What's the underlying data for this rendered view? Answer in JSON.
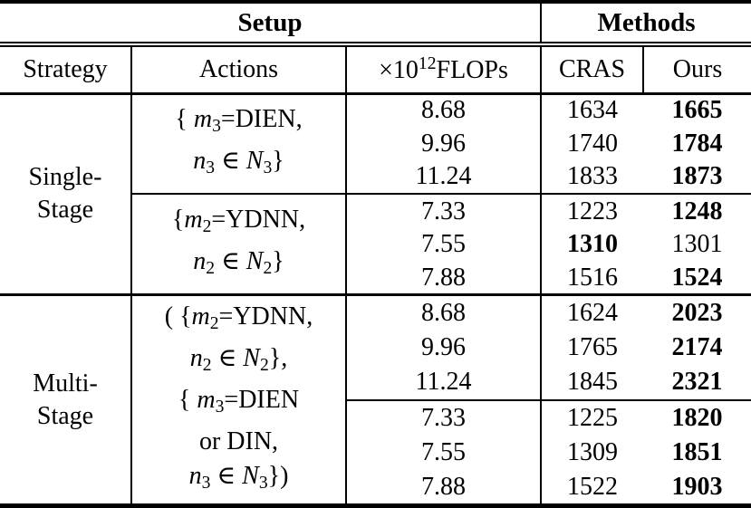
{
  "table": {
    "group_header": {
      "setup": "Setup",
      "methods": "Methods"
    },
    "columns": {
      "strategy": "Strategy",
      "actions": "Actions",
      "flops_rich": [
        {
          "t": "×10"
        },
        {
          "t": "12",
          "v": "sup"
        },
        {
          "t": "FLOPs"
        }
      ],
      "cras": "CRAS",
      "ours": "Ours"
    },
    "sections": [
      {
        "strategy": "Single-\nStage",
        "groups": [
          {
            "action_lines": [
              [
                {
                  "t": "{ "
                },
                {
                  "t": "m",
                  "v": "it"
                },
                {
                  "t": "3",
                  "v": "sub"
                },
                {
                  "t": "=DIEN,"
                }
              ],
              [
                {
                  "t": "n",
                  "v": "it"
                },
                {
                  "t": "3",
                  "v": "sub"
                },
                {
                  "t": " ∈ "
                },
                {
                  "t": "N",
                  "v": "cal"
                },
                {
                  "t": "3",
                  "v": "sub"
                },
                {
                  "t": "}"
                }
              ]
            ],
            "rows": [
              {
                "flops": "8.68",
                "cras": "1634",
                "ours": "1665",
                "cras_bold": false,
                "ours_bold": true
              },
              {
                "flops": "9.96",
                "cras": "1740",
                "ours": "1784",
                "cras_bold": false,
                "ours_bold": true
              },
              {
                "flops": "11.24",
                "cras": "1833",
                "ours": "1873",
                "cras_bold": false,
                "ours_bold": true
              }
            ]
          },
          {
            "action_lines": [
              [
                {
                  "t": "{"
                },
                {
                  "t": "m",
                  "v": "it"
                },
                {
                  "t": "2",
                  "v": "sub"
                },
                {
                  "t": "=YDNN,"
                }
              ],
              [
                {
                  "t": "n",
                  "v": "it"
                },
                {
                  "t": "2",
                  "v": "sub"
                },
                {
                  "t": " ∈ "
                },
                {
                  "t": "N",
                  "v": "cal"
                },
                {
                  "t": "2",
                  "v": "sub"
                },
                {
                  "t": "}"
                }
              ]
            ],
            "rows": [
              {
                "flops": "7.33",
                "cras": "1223",
                "ours": "1248",
                "cras_bold": false,
                "ours_bold": true
              },
              {
                "flops": "7.55",
                "cras": "1310",
                "ours": "1301",
                "cras_bold": true,
                "ours_bold": false
              },
              {
                "flops": "7.88",
                "cras": "1516",
                "ours": "1524",
                "cras_bold": false,
                "ours_bold": true
              }
            ]
          }
        ]
      },
      {
        "strategy": "Multi-\nStage",
        "action_lines": [
          [
            {
              "t": "( {"
            },
            {
              "t": "m",
              "v": "it"
            },
            {
              "t": "2",
              "v": "sub"
            },
            {
              "t": "=YDNN,"
            }
          ],
          [
            {
              "t": "n",
              "v": "it"
            },
            {
              "t": "2",
              "v": "sub"
            },
            {
              "t": " ∈ "
            },
            {
              "t": "N",
              "v": "cal"
            },
            {
              "t": "2",
              "v": "sub"
            },
            {
              "t": "},"
            }
          ],
          [
            {
              "t": "{ "
            },
            {
              "t": "m",
              "v": "it"
            },
            {
              "t": "3",
              "v": "sub"
            },
            {
              "t": "=DIEN"
            }
          ],
          [
            {
              "t": "or DIN,"
            }
          ],
          [
            {
              "t": "n",
              "v": "it"
            },
            {
              "t": "3",
              "v": "sub"
            },
            {
              "t": " ∈ "
            },
            {
              "t": "N",
              "v": "cal"
            },
            {
              "t": "3",
              "v": "sub"
            },
            {
              "t": "})"
            }
          ]
        ],
        "groups": [
          {
            "rows": [
              {
                "flops": "8.68",
                "cras": "1624",
                "ours": "2023",
                "cras_bold": false,
                "ours_bold": true
              },
              {
                "flops": "9.96",
                "cras": "1765",
                "ours": "2174",
                "cras_bold": false,
                "ours_bold": true
              },
              {
                "flops": "11.24",
                "cras": "1845",
                "ours": "2321",
                "cras_bold": false,
                "ours_bold": true
              }
            ]
          },
          {
            "rows": [
              {
                "flops": "7.33",
                "cras": "1225",
                "ours": "1820",
                "cras_bold": false,
                "ours_bold": true
              },
              {
                "flops": "7.55",
                "cras": "1309",
                "ours": "1851",
                "cras_bold": false,
                "ours_bold": true
              },
              {
                "flops": "7.88",
                "cras": "1522",
                "ours": "1903",
                "cras_bold": false,
                "ours_bold": true
              }
            ]
          }
        ]
      }
    ]
  }
}
